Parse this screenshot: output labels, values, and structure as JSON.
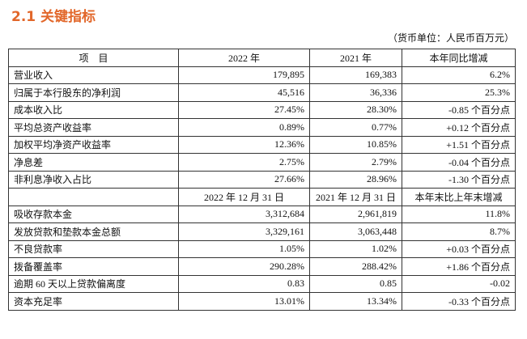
{
  "header": {
    "title": "2.1 关键指标",
    "unit_note": "（货币单位：人民币百万元）"
  },
  "table": {
    "columns": [
      "项　目",
      "2022 年",
      "2021 年",
      "本年同比增减"
    ],
    "rows": [
      [
        "营业收入",
        "179,895",
        "169,383",
        "6.2%"
      ],
      [
        "归属于本行股东的净利润",
        "45,516",
        "36,336",
        "25.3%"
      ],
      [
        "成本收入比",
        "27.45%",
        "28.30%",
        "-0.85 个百分点"
      ],
      [
        "平均总资产收益率",
        "0.89%",
        "0.77%",
        "+0.12 个百分点"
      ],
      [
        "加权平均净资产收益率",
        "12.36%",
        "10.85%",
        "+1.51 个百分点"
      ],
      [
        "净息差",
        "2.75%",
        "2.79%",
        "-0.04 个百分点"
      ],
      [
        "非利息净收入占比",
        "27.66%",
        "28.96%",
        "-1.30 个百分点"
      ]
    ],
    "subheader": [
      "2022 年 12 月 31 日",
      "2021 年 12 月 31 日",
      "本年末比上年末增减"
    ],
    "rows2": [
      [
        "吸收存款本金",
        "3,312,684",
        "2,961,819",
        "11.8%"
      ],
      [
        "发放贷款和垫款本金总额",
        "3,329,161",
        "3,063,448",
        "8.7%"
      ],
      [
        "不良贷款率",
        "1.05%",
        "1.02%",
        "+0.03 个百分点"
      ],
      [
        "拨备覆盖率",
        "290.28%",
        "288.42%",
        "+1.86 个百分点"
      ],
      [
        "逾期 60 天以上贷款偏离度",
        "0.83",
        "0.85",
        "-0.02"
      ],
      [
        "资本充足率",
        "13.01%",
        "13.34%",
        "-0.33 个百分点"
      ]
    ]
  }
}
